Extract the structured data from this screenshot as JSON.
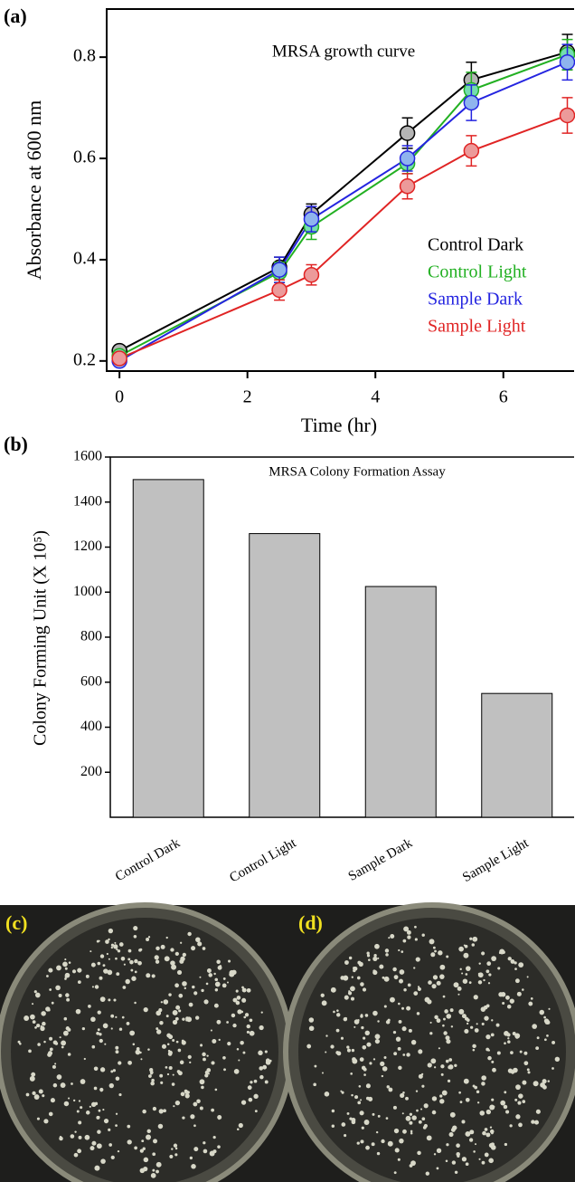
{
  "chart_data": [
    {
      "type": "line",
      "panel_label": "(a)",
      "title": "MRSA growth curve",
      "xlabel": "Time (hr)",
      "ylabel": "Absorbance at 600 nm",
      "x": [
        0,
        2.5,
        3,
        4.5,
        5.5,
        7
      ],
      "xlim": [
        -0.2,
        7.12
      ],
      "xticks": [
        0,
        2,
        4,
        6
      ],
      "ylim": [
        0.18,
        0.895
      ],
      "yticks": [
        0.2,
        0.4,
        0.6,
        0.8
      ],
      "legend": "lower right",
      "series": [
        {
          "name": "Control Dark",
          "color": "#000000",
          "marker_color": "#b4b4b4",
          "values": [
            0.22,
            0.385,
            0.49,
            0.65,
            0.755,
            0.81
          ],
          "errors": [
            0.01,
            0.02,
            0.02,
            0.03,
            0.035,
            0.035
          ]
        },
        {
          "name": "Control Light",
          "color": "#22b022",
          "marker_color": "#74dcb0",
          "values": [
            0.21,
            0.375,
            0.465,
            0.59,
            0.735,
            0.805
          ],
          "errors": [
            0.01,
            0.02,
            0.025,
            0.02,
            0.035,
            0.03
          ]
        },
        {
          "name": "Sample Dark",
          "color": "#2424e0",
          "marker_color": "#8fb4ee",
          "values": [
            0.2,
            0.38,
            0.48,
            0.6,
            0.71,
            0.79
          ],
          "errors": [
            0.01,
            0.025,
            0.025,
            0.025,
            0.035,
            0.035
          ]
        },
        {
          "name": "Sample Light",
          "color": "#e02424",
          "marker_color": "#ec9a9a",
          "values": [
            0.205,
            0.34,
            0.37,
            0.545,
            0.615,
            0.685
          ],
          "errors": [
            0.01,
            0.02,
            0.02,
            0.025,
            0.03,
            0.035
          ]
        }
      ]
    },
    {
      "type": "bar",
      "panel_label": "(b)",
      "title": "MRSA Colony Formation Assay",
      "ylabel": "Colony Forming Unit (X 10⁵)",
      "categories": [
        "Control Dark",
        "Control Light",
        "Sample Dark",
        "Sample Light"
      ],
      "values": [
        1500,
        1260,
        1025,
        550
      ],
      "color": "#c0c0c0",
      "ylim": [
        0,
        1600
      ],
      "yticks": [
        200,
        400,
        600,
        800,
        1000,
        1200,
        1400,
        1600
      ]
    }
  ],
  "photos": [
    {
      "panel_label": "(c)"
    },
    {
      "panel_label": "(d)"
    }
  ]
}
